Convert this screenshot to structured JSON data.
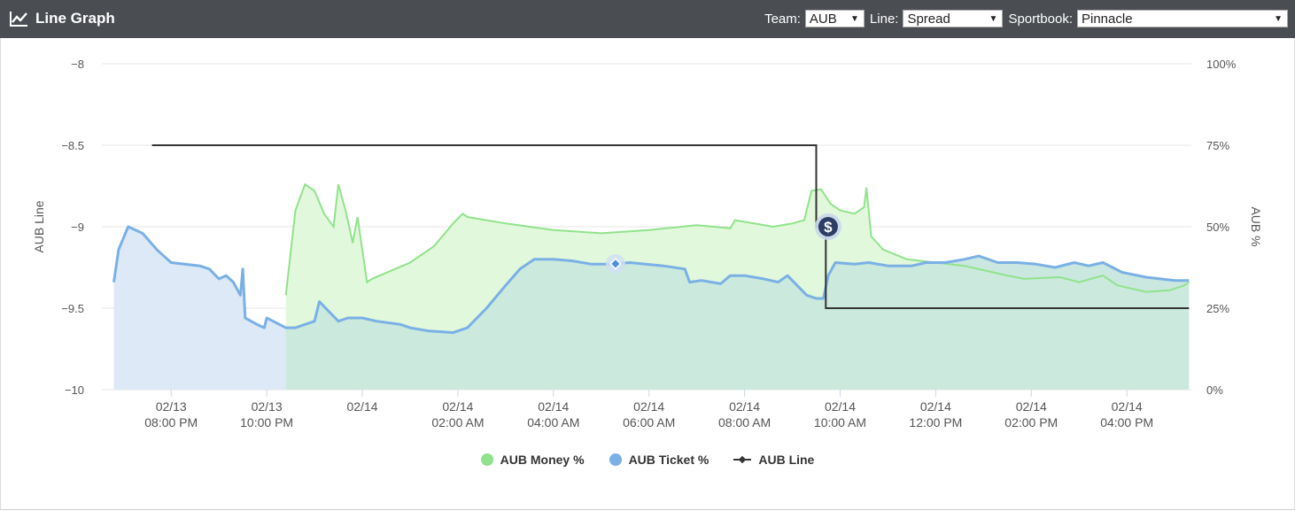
{
  "header": {
    "title": "Line Graph",
    "title_icon": "line-chart-icon",
    "team_label": "Team:",
    "team_value": "AUB",
    "line_label": "Line:",
    "line_value": "Spread",
    "book_label": "Sportbook:",
    "book_value": "Pinnacle",
    "caret_icon": "caret-down-icon"
  },
  "colors": {
    "header_bg": "#4a4d52",
    "money": "#90e38b",
    "money_fill": "#e2f8dc",
    "ticket": "#7ab0e6",
    "ticket_fill": "#dde9f7",
    "overlap_fill": "#c9e8dd",
    "line": "#333333"
  },
  "chart_data": {
    "type": "line",
    "x_axis": {
      "ticks": [
        {
          "t": 20,
          "label": [
            "02/13",
            "08:00 PM"
          ]
        },
        {
          "t": 22,
          "label": [
            "02/13",
            "10:00 PM"
          ]
        },
        {
          "t": 24,
          "label": [
            "02/14",
            ""
          ]
        },
        {
          "t": 26,
          "label": [
            "02/14",
            "02:00 AM"
          ]
        },
        {
          "t": 28,
          "label": [
            "02/14",
            "04:00 AM"
          ]
        },
        {
          "t": 30,
          "label": [
            "02/14",
            "06:00 AM"
          ]
        },
        {
          "t": 32,
          "label": [
            "02/14",
            "08:00 AM"
          ]
        },
        {
          "t": 34,
          "label": [
            "02/14",
            "10:00 AM"
          ]
        },
        {
          "t": 36,
          "label": [
            "02/14",
            "12:00 PM"
          ]
        },
        {
          "t": 38,
          "label": [
            "02/14",
            "02:00 PM"
          ]
        },
        {
          "t": 40,
          "label": [
            "02/14",
            "04:00 PM"
          ]
        }
      ],
      "range": [
        18.55,
        41.35
      ]
    },
    "y_left": {
      "label": "AUB Line",
      "ticks": [
        -8,
        -8.5,
        -9,
        -9.5,
        -10
      ],
      "range": [
        -10,
        -8
      ]
    },
    "y_right": {
      "label": "AUB %",
      "ticks": [
        "100%",
        "75%",
        "50%",
        "25%",
        "0%"
      ],
      "range": [
        0,
        100
      ]
    },
    "grid": true,
    "legend_position": "bottom",
    "series": [
      {
        "name": "AUB Money %",
        "axis": "right",
        "points": [
          [
            22.4,
            29
          ],
          [
            22.6,
            55
          ],
          [
            22.8,
            63
          ],
          [
            23.0,
            61
          ],
          [
            23.2,
            54
          ],
          [
            23.4,
            50
          ],
          [
            23.5,
            63
          ],
          [
            23.65,
            55
          ],
          [
            23.8,
            45
          ],
          [
            23.9,
            53
          ],
          [
            24.1,
            33
          ],
          [
            24.2,
            34
          ],
          [
            25.0,
            39
          ],
          [
            25.5,
            44
          ],
          [
            25.9,
            51
          ],
          [
            26.1,
            54
          ],
          [
            26.2,
            53
          ],
          [
            27.0,
            51
          ],
          [
            28.0,
            49
          ],
          [
            29.0,
            48
          ],
          [
            30.0,
            49
          ],
          [
            31.0,
            50.5
          ],
          [
            31.7,
            49.5
          ],
          [
            31.8,
            52
          ],
          [
            32.2,
            51
          ],
          [
            32.6,
            50
          ],
          [
            33.0,
            51
          ],
          [
            33.25,
            52
          ],
          [
            33.4,
            61
          ],
          [
            33.6,
            61.5
          ],
          [
            33.8,
            57
          ],
          [
            34.0,
            55
          ],
          [
            34.3,
            54
          ],
          [
            34.5,
            56
          ],
          [
            34.55,
            62
          ],
          [
            34.65,
            47
          ],
          [
            34.9,
            43
          ],
          [
            35.4,
            40
          ],
          [
            36.0,
            39
          ],
          [
            36.6,
            38
          ],
          [
            37.2,
            36
          ],
          [
            37.5,
            35
          ],
          [
            37.85,
            34
          ],
          [
            38.6,
            34.5
          ],
          [
            39.0,
            33
          ],
          [
            39.5,
            35
          ],
          [
            39.8,
            32
          ],
          [
            40.4,
            30
          ],
          [
            40.9,
            30.5
          ],
          [
            41.2,
            32
          ],
          [
            41.3,
            33
          ]
        ]
      },
      {
        "name": "AUB Ticket %",
        "axis": "right",
        "points": [
          [
            18.8,
            33
          ],
          [
            18.9,
            43
          ],
          [
            19.1,
            50
          ],
          [
            19.4,
            48
          ],
          [
            19.7,
            43
          ],
          [
            20.0,
            39
          ],
          [
            20.6,
            38
          ],
          [
            20.8,
            37
          ],
          [
            21.0,
            34
          ],
          [
            21.15,
            35
          ],
          [
            21.3,
            33
          ],
          [
            21.45,
            29
          ],
          [
            21.5,
            37
          ],
          [
            21.55,
            22
          ],
          [
            21.8,
            20
          ],
          [
            21.95,
            19
          ],
          [
            22.0,
            22
          ],
          [
            22.4,
            19
          ],
          [
            22.6,
            19
          ],
          [
            23.0,
            21
          ],
          [
            23.1,
            27
          ],
          [
            23.3,
            24
          ],
          [
            23.5,
            21
          ],
          [
            23.7,
            22
          ],
          [
            24.0,
            22
          ],
          [
            24.3,
            21
          ],
          [
            24.8,
            20
          ],
          [
            25.0,
            19
          ],
          [
            25.4,
            18
          ],
          [
            25.9,
            17.5
          ],
          [
            26.2,
            19
          ],
          [
            26.6,
            25
          ],
          [
            27.0,
            32
          ],
          [
            27.3,
            37
          ],
          [
            27.6,
            40
          ],
          [
            28.0,
            40
          ],
          [
            28.4,
            39.5
          ],
          [
            28.8,
            38.5
          ],
          [
            29.2,
            38.5
          ],
          [
            29.6,
            39
          ],
          [
            30.3,
            38
          ],
          [
            30.75,
            37
          ],
          [
            30.85,
            33
          ],
          [
            31.1,
            33.5
          ],
          [
            31.5,
            32.5
          ],
          [
            31.7,
            35
          ],
          [
            32.0,
            35
          ],
          [
            32.4,
            34
          ],
          [
            32.7,
            33
          ],
          [
            32.9,
            35
          ],
          [
            33.3,
            29
          ],
          [
            33.5,
            28
          ],
          [
            33.65,
            28
          ],
          [
            33.75,
            35
          ],
          [
            33.9,
            39
          ],
          [
            34.3,
            38.5
          ],
          [
            34.6,
            39
          ],
          [
            35.0,
            38
          ],
          [
            35.5,
            38
          ],
          [
            35.8,
            39
          ],
          [
            36.2,
            39
          ],
          [
            36.6,
            40
          ],
          [
            36.9,
            41
          ],
          [
            37.3,
            39
          ],
          [
            37.7,
            39
          ],
          [
            38.1,
            38.5
          ],
          [
            38.5,
            37.5
          ],
          [
            38.9,
            39
          ],
          [
            39.2,
            38
          ],
          [
            39.5,
            39
          ],
          [
            39.9,
            36
          ],
          [
            40.4,
            34.5
          ],
          [
            41.0,
            33.5
          ],
          [
            41.3,
            33.5
          ]
        ]
      },
      {
        "name": "AUB Line",
        "axis": "left",
        "points": [
          [
            19.6,
            -8.5
          ],
          [
            33.5,
            -8.5
          ],
          [
            33.5,
            -9
          ],
          [
            33.7,
            -9
          ],
          [
            33.7,
            -9.5
          ],
          [
            41.3,
            -9.5
          ]
        ]
      }
    ],
    "markers": [
      {
        "series": "AUB Ticket %",
        "t": 29.3,
        "icon": "diamond-marker-icon"
      },
      {
        "series": "AUB Line",
        "t": 33.6,
        "icon": "dollar-marker-icon"
      }
    ]
  },
  "legend": [
    {
      "name": "AUB Money %",
      "swatch": "dot",
      "color": "#90e38b"
    },
    {
      "name": "AUB Ticket %",
      "swatch": "dot",
      "color": "#7ab0e6"
    },
    {
      "name": "AUB Line",
      "swatch": "line",
      "color": "#333333"
    }
  ]
}
